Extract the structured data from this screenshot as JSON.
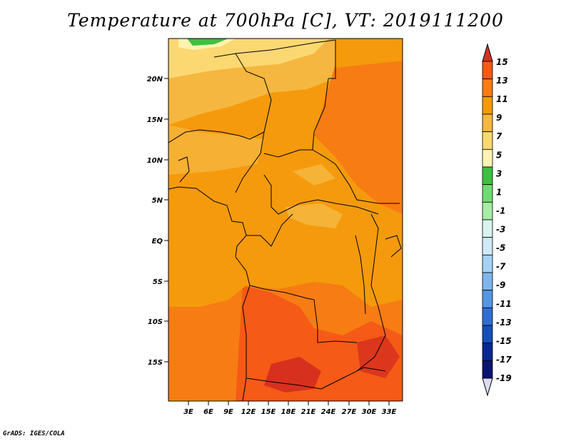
{
  "title": "Temperature at 700hPa [C], VT: 2019111200",
  "credit": "GrADS: IGES/COLA",
  "map": {
    "lat_labels": [
      "20N",
      "15N",
      "10N",
      "5N",
      "EQ",
      "5S",
      "10S",
      "15S"
    ],
    "lon_labels": [
      "3E",
      "6E",
      "9E",
      "12E",
      "15E",
      "18E",
      "21E",
      "24E",
      "27E",
      "30E",
      "33E"
    ]
  },
  "colorbar": {
    "labels": [
      "15",
      "13",
      "11",
      "9",
      "7",
      "5",
      "3",
      "1",
      "-1",
      "-3",
      "-5",
      "-7",
      "-9",
      "-11",
      "-13",
      "-15",
      "-17",
      "-19"
    ],
    "colors": [
      "#d7301f",
      "#f55a16",
      "#f77c14",
      "#f59a0c",
      "#f5b740",
      "#fbd872",
      "#fff3b0",
      "#3fbf3f",
      "#6fdc6f",
      "#a7eca7",
      "#d8f4ee",
      "#cfe9f9",
      "#a5d2f5",
      "#7db6ee",
      "#5497e3",
      "#2f6fd1",
      "#154fb7",
      "#08288f",
      "#0a1570",
      "#d9dcf5"
    ]
  }
}
